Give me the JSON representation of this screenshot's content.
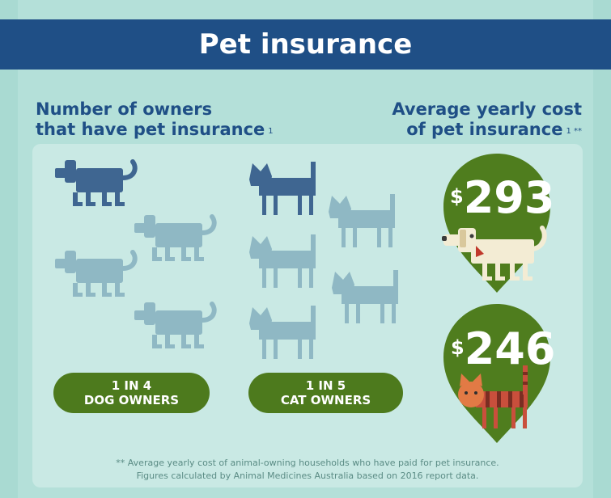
{
  "title": "Pet insurance",
  "left_heading": {
    "line1": "Number of owners",
    "line2": "that have pet insurance",
    "ref": "1"
  },
  "right_heading": {
    "line1": "Average yearly cost",
    "line2": "of pet insurance",
    "ref": "1 **"
  },
  "dog_stat": {
    "line1": "1 IN 4",
    "line2": "DOG OWNERS"
  },
  "cat_stat": {
    "line1": "1 IN 5",
    "line2": "CAT OWNERS"
  },
  "dog_cost": {
    "currency": "$",
    "value": "293"
  },
  "cat_cost": {
    "currency": "$",
    "value": "246"
  },
  "footnote": {
    "line1": "** Average yearly cost of animal-owning households who have paid for pet insurance.",
    "line2": "Figures calculated by Animal Medicines Australia based on 2016 report data."
  },
  "colors": {
    "banner": "#1f4f86",
    "pill_green": "#4d7a1d",
    "pin_green": "#4f7d1e",
    "highlight_icon": "#3f6691",
    "faded_icon": "#8fb8c4"
  }
}
